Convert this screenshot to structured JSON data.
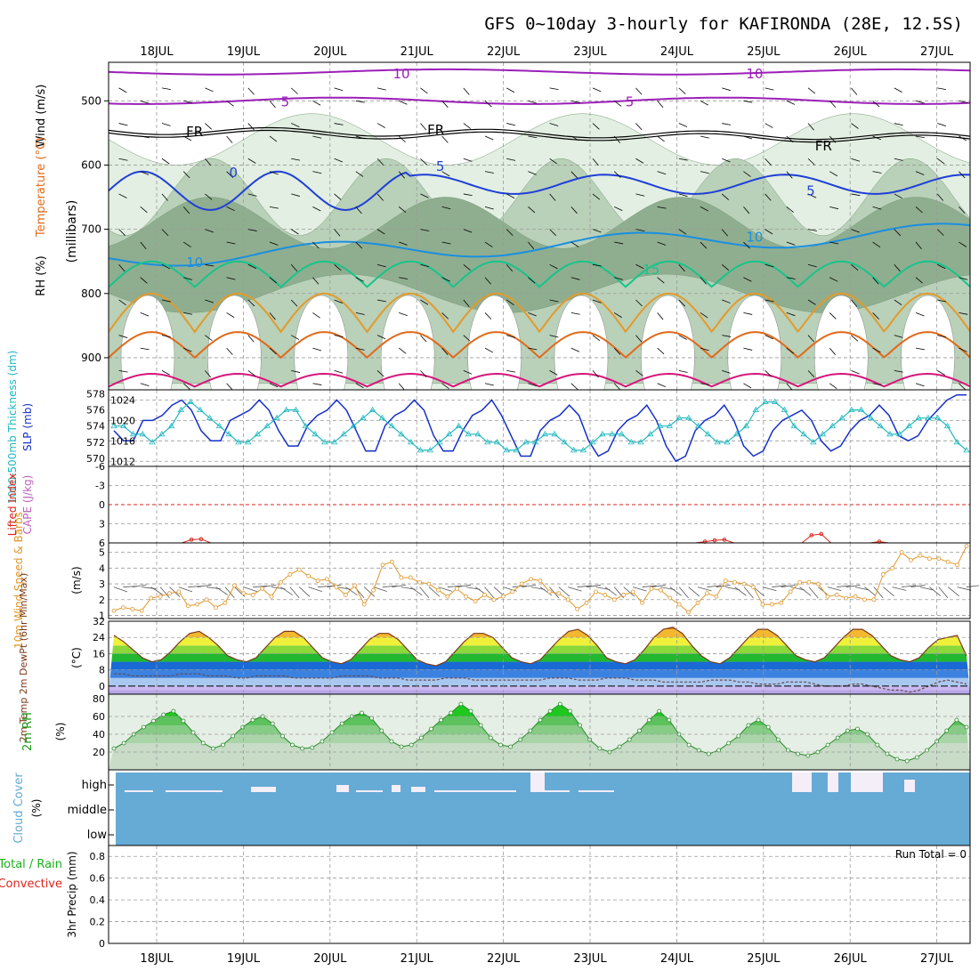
{
  "title": "GFS 0~10day 3-hourly for KAFIRONDA (28E, 12.5S)",
  "dates": [
    "18JUL",
    "19JUL",
    "20JUL",
    "21JUL",
    "22JUL",
    "23JUL",
    "24JUL",
    "25JUL",
    "26JUL",
    "27JUL"
  ],
  "colors": {
    "purple": "#9b1fb8",
    "black": "#000000",
    "blue": "#1f3fd6",
    "lightblue": "#1a8fe0",
    "teal": "#18c48a",
    "orange": "#e39a2a",
    "darkorange": "#e06a1a",
    "magenta": "#d6157a",
    "rh_light": "#e2efe2",
    "rh_mid": "#b9d0b9",
    "rh_dark": "#8fae8f",
    "rh_green": "#5ec05e",
    "slp": "#1530c8",
    "thickness": "#20b8c0",
    "li": "#d8261e",
    "wind10": "#e0962a",
    "cloud": "#66aad6",
    "grid": "#9a9a9a"
  },
  "panels": {
    "upper": {
      "ylabel_parts": [
        "RH (%)",
        "Temperature (°C)",
        "Wind (m/s)"
      ],
      "ylabel2": "(millibars)",
      "yticks": [
        "500",
        "600",
        "700",
        "800",
        "900"
      ],
      "contour_labels": [
        {
          "text": "10",
          "t": 0.33,
          "p": 458,
          "c": "purple"
        },
        {
          "text": "10",
          "t": 0.74,
          "p": 458,
          "c": "purple"
        },
        {
          "text": "5",
          "t": 0.2,
          "p": 502,
          "c": "purple"
        },
        {
          "text": "5",
          "t": 0.6,
          "p": 502,
          "c": "purple"
        },
        {
          "text": "FR",
          "t": 0.09,
          "p": 548,
          "c": "black"
        },
        {
          "text": "FR",
          "t": 0.37,
          "p": 545,
          "c": "black"
        },
        {
          "text": "FR",
          "t": 0.82,
          "p": 570,
          "c": "black"
        },
        {
          "text": "0",
          "t": 0.14,
          "p": 612,
          "c": "blue"
        },
        {
          "text": "5",
          "t": 0.38,
          "p": 602,
          "c": "blue"
        },
        {
          "text": "5",
          "t": 0.81,
          "p": 640,
          "c": "blue"
        },
        {
          "text": "10",
          "t": 0.09,
          "p": 752,
          "c": "lightblue"
        },
        {
          "text": "10",
          "t": 0.74,
          "p": 712,
          "c": "lightblue"
        },
        {
          "text": "15",
          "t": 0.62,
          "p": 763,
          "c": "teal"
        }
      ]
    },
    "slp": {
      "ylabel_left": "1000-500mb Thickness (dm)",
      "ylabel_right": "SLP (mb)",
      "left_ticks": [
        "570",
        "572",
        "574",
        "576",
        "578"
      ],
      "right_ticks": [
        "1012",
        "1016",
        "1020",
        "1024"
      ]
    },
    "li": {
      "ylabel_left": "Lifted Index",
      "ylabel_right": "CAPE (J/kg)",
      "yticks": [
        "-6",
        "-3",
        "0",
        "3",
        "6"
      ]
    },
    "wind10": {
      "ylabel": "10m Wind Speed & Barbs",
      "unit": "(m/s)",
      "yticks": [
        "1",
        "2",
        "3",
        "4",
        "5"
      ]
    },
    "temp": {
      "ylabel": "2m Temp 2m DewPt (6hr Min/Max)",
      "unit": "(°C)",
      "yticks": [
        "0",
        "8",
        "16",
        "24",
        "32"
      ]
    },
    "rh": {
      "ylabel": "2m RH",
      "unit": "(%)",
      "yticks": [
        "20",
        "40",
        "60",
        "80"
      ]
    },
    "cloud": {
      "ylabel": "Cloud Cover",
      "unit": "(%)",
      "levels": [
        "high",
        "middle",
        "low"
      ]
    },
    "precip": {
      "ylabel_a": "Total / Rain",
      "ylabel_b": "Convective",
      "ylabel_c": "3hr Precip (mm)",
      "yticks": [
        "0",
        "0.2",
        "0.4",
        "0.6",
        "0.8"
      ],
      "run_total": "Run Total = 0"
    }
  },
  "chart_data": [
    {
      "type": "line",
      "title": "GFS 0~10day 3-hourly for KAFIRONDA (28E, 12.5S)",
      "xlabel": "",
      "ylabel": "SLP (mb)",
      "ylim": [
        1012,
        1026
      ],
      "series": [
        {
          "name": "SLP (mb)",
          "values": [
            1018,
            1016,
            1016,
            1020,
            1020,
            1021,
            1023,
            1024,
            1022,
            1018,
            1016,
            1016,
            1020,
            1021,
            1022,
            1024,
            1022,
            1018,
            1015,
            1015,
            1019,
            1021,
            1022,
            1024,
            1022,
            1018,
            1014,
            1014,
            1019,
            1021,
            1022,
            1024,
            1022,
            1017,
            1014,
            1014,
            1018,
            1021,
            1022,
            1024,
            1021,
            1017,
            1013,
            1013,
            1018,
            1020,
            1021,
            1023,
            1021,
            1016,
            1013,
            1014,
            1018,
            1020,
            1021,
            1023,
            1020,
            1015,
            1012,
            1013,
            1018,
            1020,
            1021,
            1023,
            1020,
            1015,
            1013,
            1014,
            1018,
            1020,
            1021,
            1022,
            1020,
            1016,
            1014,
            1015,
            1018,
            1020,
            1021,
            1023,
            1021,
            1017,
            1016,
            1017,
            1020,
            1022,
            1024,
            1025,
            1025
          ]
        }
      ]
    },
    {
      "type": "line",
      "ylabel": "1000-500mb Thickness (dm)",
      "ylim": [
        569,
        578
      ],
      "series": [
        {
          "name": "1000-500mb Thickness (dm)",
          "values": [
            574,
            574,
            573,
            573,
            572,
            573,
            574,
            576,
            577,
            576,
            575,
            574,
            573,
            572,
            572,
            573,
            574,
            575,
            576,
            576,
            574,
            573,
            572,
            572,
            573,
            574,
            575,
            576,
            575,
            574,
            573,
            572,
            571,
            571,
            572,
            573,
            574,
            573,
            573,
            572,
            572,
            571,
            571,
            572,
            572,
            573,
            573,
            572,
            571,
            571,
            572,
            573,
            573,
            573,
            572,
            572,
            573,
            574,
            574,
            575,
            575,
            574,
            573,
            572,
            572,
            573,
            574,
            576,
            577,
            577,
            576,
            574,
            573,
            572,
            573,
            574,
            575,
            576,
            576,
            575,
            574,
            573,
            573,
            574,
            575,
            575,
            575,
            574,
            572,
            571
          ]
        }
      ]
    },
    {
      "type": "line",
      "ylabel": "Lifted Index",
      "ylim": [
        -6,
        6
      ],
      "series": [
        {
          "name": "Lifted Index",
          "values": [
            6,
            6,
            6,
            6,
            6,
            6,
            6,
            6,
            5.5,
            5.4,
            6,
            6,
            6,
            6,
            6,
            6,
            6,
            6,
            6,
            6,
            6,
            6,
            6,
            6,
            6,
            6,
            6,
            6,
            6,
            6,
            6,
            6,
            6,
            6,
            6,
            6,
            6,
            6,
            6,
            6,
            6,
            6,
            6,
            6,
            6,
            6,
            6,
            6,
            6,
            6,
            6,
            6,
            6,
            6,
            6,
            6,
            6,
            6,
            6,
            6,
            6,
            5.8,
            5.6,
            5.5,
            6,
            6,
            6,
            6,
            6,
            6,
            6,
            6,
            4.8,
            4.6,
            6,
            6,
            6,
            6,
            6,
            5.8,
            6,
            6,
            6,
            6,
            6,
            6,
            6,
            6,
            6
          ]
        }
      ]
    },
    {
      "type": "line",
      "ylabel": "10m Wind Speed & Barbs (m/s)",
      "ylim": [
        0.8,
        5.6
      ],
      "series": [
        {
          "name": "10m Wind Speed",
          "values": [
            1.3,
            1.5,
            1.4,
            1.3,
            2.1,
            2.2,
            2.4,
            2.5,
            1.6,
            1.7,
            2.0,
            1.5,
            1.8,
            2.9,
            2.4,
            2.3,
            2.7,
            2.2,
            3.1,
            3.6,
            3.9,
            3.5,
            3.2,
            3.3,
            2.8,
            2.3,
            2.9,
            1.7,
            2.6,
            4.2,
            4.4,
            3.4,
            3.4,
            3.1,
            3.0,
            2.6,
            2.2,
            2.7,
            2.2,
            1.9,
            2.3,
            2.0,
            2.2,
            2.5,
            3.0,
            3.3,
            3.2,
            2.5,
            2.4,
            2.0,
            1.4,
            1.8,
            2.5,
            2.3,
            2.0,
            2.3,
            2.5,
            1.8,
            2.7,
            2.6,
            2.1,
            1.7,
            1.2,
            1.8,
            2.4,
            2.2,
            3.2,
            3.1,
            3.0,
            2.8,
            1.7,
            1.7,
            1.8,
            2.5,
            3.1,
            3.1,
            3.0,
            2.2,
            2.3,
            2.1,
            2.2,
            2.0,
            2.0,
            3.6,
            4.0,
            5.0,
            4.5,
            4.8,
            4.6,
            4.6,
            4.4,
            4.2,
            5.4
          ]
        }
      ]
    },
    {
      "type": "area",
      "ylabel": "2m Temp (°C)",
      "ylim": [
        -4,
        32
      ],
      "series": [
        {
          "name": "2m Temp",
          "values": [
            25,
            22,
            18,
            14,
            12,
            13,
            17,
            22,
            26,
            27,
            24,
            20,
            15,
            13,
            12,
            14,
            19,
            24,
            27,
            27,
            24,
            19,
            14,
            12,
            11,
            13,
            18,
            23,
            26,
            26,
            23,
            18,
            13,
            11,
            10,
            12,
            17,
            22,
            26,
            26,
            24,
            19,
            14,
            12,
            11,
            13,
            18,
            23,
            27,
            28,
            25,
            20,
            14,
            12,
            11,
            13,
            18,
            24,
            28,
            29,
            26,
            20,
            15,
            12,
            11,
            14,
            19,
            24,
            28,
            28,
            25,
            20,
            15,
            13,
            12,
            14,
            19,
            24,
            28,
            28,
            25,
            20,
            15,
            13,
            12,
            14,
            19,
            23,
            24,
            25,
            15
          ]
        },
        {
          "name": "2m DewPt",
          "values": [
            6,
            6,
            5,
            5,
            5,
            5,
            5,
            6,
            6,
            6,
            5,
            5,
            5,
            4,
            4,
            5,
            5,
            5,
            5,
            4,
            4,
            4,
            4,
            4,
            5,
            5,
            5,
            5,
            4,
            4,
            4,
            3,
            3,
            3,
            3,
            4,
            4,
            4,
            3,
            3,
            3,
            3,
            3,
            3,
            3,
            3,
            4,
            4,
            4,
            3,
            3,
            3,
            4,
            4,
            4,
            3,
            3,
            3,
            2,
            2,
            2,
            2,
            2,
            3,
            3,
            3,
            2,
            2,
            1,
            1,
            1,
            2,
            2,
            2,
            1,
            0,
            0,
            0,
            1,
            1,
            0,
            -1,
            -2,
            -2,
            -3,
            -2,
            0,
            2,
            3,
            2,
            1
          ]
        }
      ]
    },
    {
      "type": "area",
      "ylabel": "2m RH (%)",
      "ylim": [
        0,
        85
      ],
      "series": [
        {
          "name": "2m RH",
          "values": [
            24,
            30,
            40,
            48,
            55,
            62,
            66,
            55,
            42,
            30,
            24,
            28,
            38,
            48,
            56,
            60,
            52,
            38,
            28,
            24,
            25,
            32,
            42,
            52,
            60,
            64,
            58,
            44,
            32,
            26,
            28,
            36,
            46,
            56,
            64,
            74,
            66,
            50,
            36,
            28,
            26,
            34,
            44,
            56,
            66,
            74,
            66,
            50,
            34,
            24,
            20,
            26,
            34,
            44,
            56,
            66,
            56,
            40,
            28,
            22,
            18,
            22,
            30,
            38,
            50,
            56,
            48,
            34,
            22,
            18,
            16,
            20,
            28,
            36,
            44,
            46,
            40,
            28,
            18,
            12,
            10,
            14,
            22,
            32,
            44,
            56,
            48
          ]
        }
      ]
    },
    {
      "type": "bar",
      "ylabel": "3hr Precip (mm)",
      "ylim": [
        0,
        0.9
      ],
      "series": [
        {
          "name": "Total / Rain",
          "values": [
            0,
            0,
            0,
            0,
            0,
            0,
            0,
            0,
            0,
            0
          ]
        },
        {
          "name": "Convective",
          "values": [
            0,
            0,
            0,
            0,
            0,
            0,
            0,
            0,
            0,
            0
          ]
        }
      ]
    }
  ]
}
